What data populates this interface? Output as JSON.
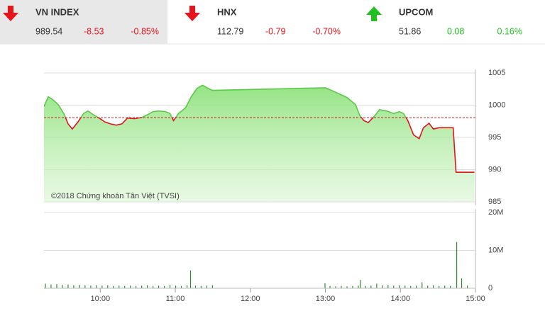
{
  "indices": [
    {
      "name": "VN INDEX",
      "value": "989.54",
      "change": "-8.53",
      "percent": "-0.85%",
      "direction": "down",
      "color": "#e8141c",
      "selected": true
    },
    {
      "name": "HNX",
      "value": "112.79",
      "change": "-0.79",
      "percent": "-0.70%",
      "direction": "down",
      "color": "#e8141c",
      "selected": false
    },
    {
      "name": "UPCOM",
      "value": "51.86",
      "change": "0.08",
      "percent": "0.16%",
      "direction": "up",
      "color": "#1fc11f",
      "selected": false
    }
  ],
  "chart_data": [
    {
      "type": "line",
      "annotation": "©2018 Chứng khoán Tân Việt (TVSI)",
      "x": [
        9.25,
        9.307,
        9.363,
        9.439,
        9.514,
        9.571,
        9.627,
        9.703,
        9.778,
        9.835,
        9.91,
        9.986,
        10.061,
        10.137,
        10.212,
        10.288,
        10.363,
        10.458,
        10.552,
        10.627,
        10.703,
        10.778,
        10.873,
        10.929,
        10.976,
        11.042,
        11.137,
        11.212,
        11.288,
        11.363,
        11.439,
        11.495,
        13.005,
        13.08,
        13.175,
        13.288,
        13.401,
        13.458,
        13.514,
        13.571,
        13.646,
        13.722,
        13.816,
        13.91,
        13.986,
        14.042,
        14.099,
        14.175,
        14.25,
        14.307,
        14.382,
        14.439,
        14.514,
        14.627,
        14.703,
        14.741,
        14.986
      ],
      "values": [
        999.8,
        1001.3,
        1000.9,
        1000.1,
        998.7,
        997.1,
        996.3,
        997.4,
        998.7,
        999.1,
        998.5,
        998.0,
        997.4,
        997.1,
        996.9,
        997.1,
        998.0,
        997.9,
        998.1,
        998.5,
        999.0,
        999.1,
        999.0,
        998.7,
        997.6,
        998.7,
        999.6,
        1001.3,
        1002.6,
        1003.1,
        1002.6,
        1002.3,
        1002.7,
        1002.3,
        1001.8,
        1001.2,
        1000.1,
        998.4,
        997.6,
        997.3,
        998.2,
        999.3,
        999.1,
        998.7,
        999.0,
        998.7,
        997.6,
        995.4,
        994.8,
        996.5,
        997.2,
        996.3,
        996.5,
        996.5,
        996.5,
        989.6,
        989.6
      ],
      "color": "#5cc84a",
      "below_color": "#e0141b",
      "fill_color": "#8fe27d",
      "reference_line": 998.07,
      "reference_color": "#c00000",
      "xlim": [
        9.25,
        15.0
      ],
      "ylim": [
        985,
        1005
      ],
      "yticks": [
        985,
        990,
        995,
        1000,
        1005
      ],
      "grid": true
    },
    {
      "type": "bar",
      "x": [
        9.269,
        9.344,
        9.42,
        9.495,
        9.571,
        9.646,
        9.722,
        9.797,
        9.873,
        9.948,
        10.024,
        10.099,
        10.175,
        10.25,
        10.325,
        10.401,
        10.476,
        10.552,
        10.627,
        10.703,
        10.778,
        10.854,
        10.929,
        11.005,
        11.08,
        11.156,
        11.203,
        11.269,
        11.344,
        11.42,
        11.495,
        12.995,
        13.061,
        13.137,
        13.212,
        13.288,
        13.363,
        13.439,
        13.467,
        13.533,
        13.608,
        13.684,
        13.759,
        13.835,
        13.91,
        13.986,
        14.061,
        14.137,
        14.212,
        14.288,
        14.363,
        14.439,
        14.514,
        14.59,
        14.665,
        14.75,
        14.816,
        14.892
      ],
      "values": [
        1.2,
        1.0,
        1.1,
        0.9,
        1.0,
        0.8,
        0.9,
        0.8,
        0.7,
        0.8,
        0.7,
        0.8,
        0.6,
        0.7,
        0.6,
        0.7,
        0.6,
        0.7,
        0.8,
        0.6,
        0.7,
        0.6,
        0.9,
        0.7,
        0.6,
        0.8,
        4.7,
        0.7,
        0.6,
        0.7,
        0.8,
        1.3,
        0.6,
        0.5,
        0.6,
        0.5,
        0.6,
        0.7,
        2.2,
        0.6,
        0.7,
        1.2,
        0.8,
        0.9,
        0.7,
        0.8,
        0.7,
        0.6,
        0.7,
        1.6,
        0.7,
        0.8,
        0.6,
        0.7,
        0.6,
        12.2,
        2.6,
        0.7
      ],
      "color": "#2e8b2e",
      "xlim": [
        9.25,
        15.0
      ],
      "xticks": [
        {
          "value": 10,
          "label": "10:00"
        },
        {
          "value": 11,
          "label": "11:00"
        },
        {
          "value": 12,
          "label": "12:00"
        },
        {
          "value": 13,
          "label": "13:00"
        },
        {
          "value": 14,
          "label": "14:00"
        },
        {
          "value": 15,
          "label": "15:00"
        }
      ],
      "ylim": [
        0,
        20
      ],
      "yticks": [
        0,
        {
          "value": 10,
          "label": "10M"
        },
        {
          "value": 20,
          "label": "20M"
        }
      ],
      "grid": true
    }
  ]
}
